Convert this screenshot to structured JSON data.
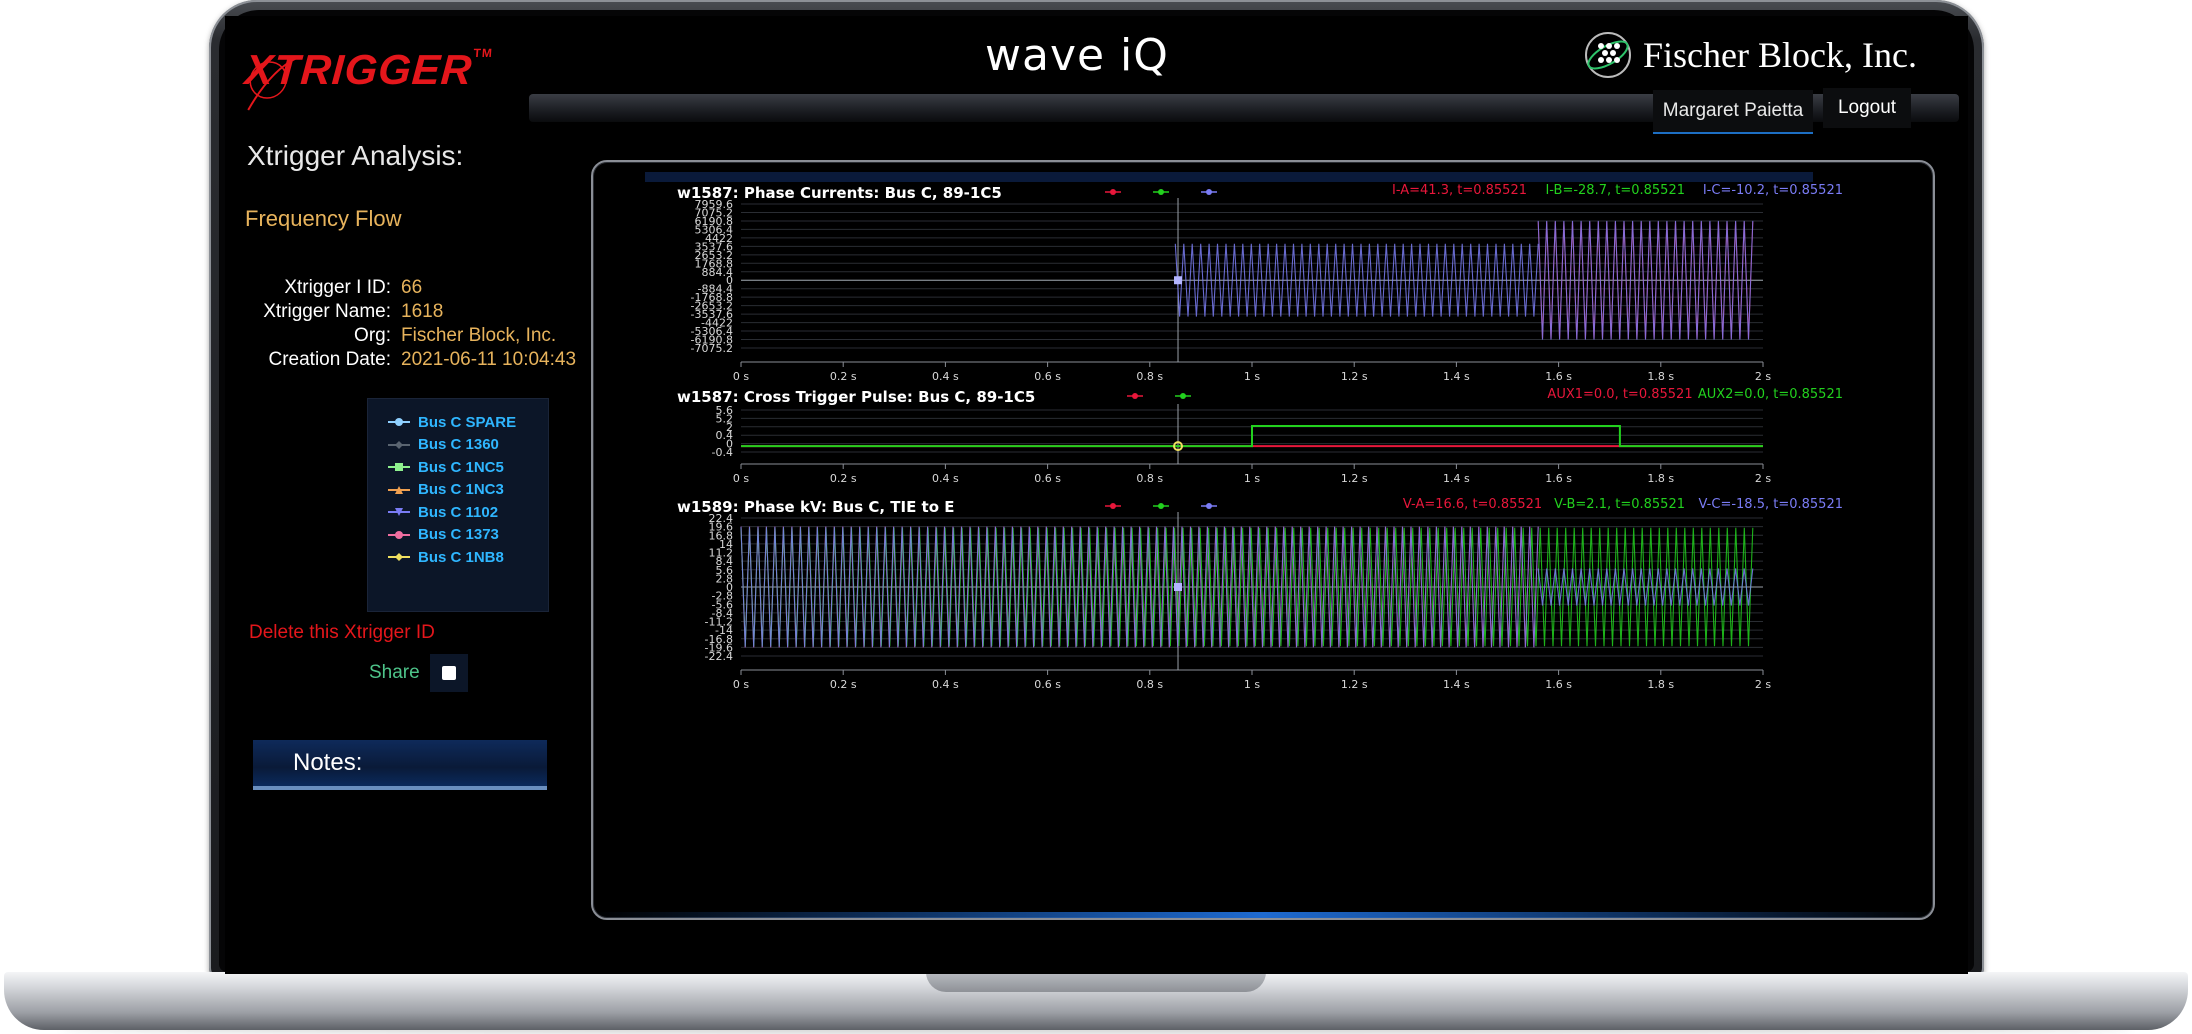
{
  "brand": {
    "app_logo_text": "XTRIGGER",
    "app_logo_tm": "TM",
    "product_logo": "wave iQ",
    "company_name": "Fischer Block, Inc."
  },
  "header": {
    "user_name": "Margaret Paietta",
    "logout_label": "Logout"
  },
  "sidebar": {
    "title": "Xtrigger Analysis:",
    "link_frequency_flow": "Frequency Flow",
    "info": [
      {
        "label": "Xtrigger I ID:",
        "value": "66"
      },
      {
        "label": "Xtrigger Name:",
        "value": "1618"
      },
      {
        "label": "Org:",
        "value": "Fischer Block, Inc."
      },
      {
        "label": "Creation Date:",
        "value": "2021-06-11 10:04:43"
      }
    ],
    "legend": [
      {
        "label": "Bus C SPARE",
        "color": "#8fd0ff",
        "marker": "circle"
      },
      {
        "label": "Bus C 1360",
        "color": "#5a6470",
        "marker": "diamond"
      },
      {
        "label": "Bus C 1NC5",
        "color": "#8ef08e",
        "marker": "square"
      },
      {
        "label": "Bus C 1NC3",
        "color": "#f0a050",
        "marker": "triangle-up"
      },
      {
        "label": "Bus C 1102",
        "color": "#7a7cf5",
        "marker": "triangle-down"
      },
      {
        "label": "Bus C 1373",
        "color": "#f06ea0",
        "marker": "circle"
      },
      {
        "label": "Bus C 1NB8",
        "color": "#f0e060",
        "marker": "diamond"
      }
    ],
    "delete_label": "Delete this Xtrigger  ID",
    "share_label": "Share",
    "notes_label": "Notes:"
  },
  "colors": {
    "phase_a": "#e8173b",
    "phase_b": "#22d11e",
    "phase_c": "#7a7cf5",
    "accent_gold": "#e7b35c",
    "accent_red": "#e4161b"
  },
  "chart_data": [
    {
      "type": "line",
      "title": "w1587: Phase Currents: Bus C, 89-1C5",
      "readouts": [
        {
          "text": "I-A=41.3, t=0.85521",
          "color": "#e8173b"
        },
        {
          "text": "I-B=-28.7, t=0.85521",
          "color": "#22d11e"
        },
        {
          "text": "I-C=-10.2, t=0.85521",
          "color": "#7a7cf5"
        }
      ],
      "y_ticks": [
        "7959.6",
        "7075.2",
        "6190.8",
        "5306.4",
        "4422",
        "3537.6",
        "2653.2",
        "1768.8",
        "884.4",
        "0",
        "-884.4",
        "-1768.8",
        "-2653.2",
        "-3537.6",
        "-4422",
        "-5306.4",
        "-6190.8",
        "-7075.2"
      ],
      "x_ticks": [
        "0 s",
        "0.2 s",
        "0.4 s",
        "0.6 s",
        "0.8 s",
        "1 s",
        "1.2 s",
        "1.4 s",
        "1.6 s",
        "1.8 s",
        "2 s"
      ],
      "xlim": [
        0,
        2
      ],
      "ylim": [
        -7075.2,
        7959.6
      ],
      "cursor_x": 0.85521,
      "series": [
        {
          "name": "I-A",
          "color": "#e8173b",
          "segments": [
            {
              "x0": 0.85,
              "x1": 1.56,
              "amp": 0
            },
            {
              "x0": 1.56,
              "x1": 1.98,
              "amp": 6100
            }
          ]
        },
        {
          "name": "I-B",
          "color": "#22d11e",
          "segments": []
        },
        {
          "name": "I-C",
          "color": "#7a7cf5",
          "segments": [
            {
              "x0": 0.85,
              "x1": 1.56,
              "amp": 3800
            },
            {
              "x0": 1.56,
              "x1": 1.98,
              "amp": 6200
            }
          ]
        }
      ]
    },
    {
      "type": "line",
      "title": "w1587: Cross Trigger Pulse: Bus C, 89-1C5",
      "readouts": [
        {
          "text": "AUX1=0.0, t=0.85521",
          "color": "#e8173b"
        },
        {
          "text": "AUX2=0.0, t=0.85521",
          "color": "#22d11e"
        }
      ],
      "y_ticks": [
        "5.6",
        "5.2",
        "2",
        "0.4",
        "0",
        "-0.4"
      ],
      "x_ticks": [
        "0 s",
        "0.2 s",
        "0.4 s",
        "0.6 s",
        "0.8 s",
        "1 s",
        "1.2 s",
        "1.4 s",
        "1.6 s",
        "1.8 s",
        "2 s"
      ],
      "xlim": [
        0,
        2
      ],
      "cursor_x": 0.85521,
      "series": [
        {
          "name": "AUX1",
          "color": "#e8173b",
          "points": [
            [
              0,
              0
            ],
            [
              2,
              0
            ]
          ]
        },
        {
          "name": "AUX2",
          "color": "#22d11e",
          "points": [
            [
              0,
              0
            ],
            [
              1.0,
              0
            ],
            [
              1.0,
              1
            ],
            [
              1.72,
              1
            ],
            [
              1.72,
              0
            ],
            [
              2,
              0
            ]
          ]
        }
      ]
    },
    {
      "type": "line",
      "title": "w1589: Phase kV: Bus C, TIE to E",
      "readouts": [
        {
          "text": "V-A=16.6, t=0.85521",
          "color": "#e8173b"
        },
        {
          "text": "V-B=2.1, t=0.85521",
          "color": "#22d11e"
        },
        {
          "text": "V-C=-18.5, t=0.85521",
          "color": "#7a7cf5"
        }
      ],
      "y_ticks": [
        "22.4",
        "19.6",
        "16.8",
        "14",
        "11.2",
        "8.4",
        "5.6",
        "2.8",
        "0",
        "-2.8",
        "-5.6",
        "-8.4",
        "-11.2",
        "-14",
        "-16.8",
        "-19.6",
        "-22.4"
      ],
      "x_ticks": [
        "0 s",
        "0.2 s",
        "0.4 s",
        "0.6 s",
        "0.8 s",
        "1 s",
        "1.2 s",
        "1.4 s",
        "1.6 s",
        "1.8 s",
        "2 s"
      ],
      "xlim": [
        0,
        2
      ],
      "ylim": [
        -22.4,
        22.4
      ],
      "cursor_x": 0.85521,
      "series": [
        {
          "name": "V-A",
          "color": "#e8173b",
          "segments": [
            {
              "x0": 0,
              "x1": 1.56,
              "amp": 19.6
            }
          ]
        },
        {
          "name": "V-B",
          "color": "#22d11e",
          "segments": [
            {
              "x0": 0,
              "x1": 1.98,
              "amp": 19.6
            }
          ]
        },
        {
          "name": "V-C",
          "color": "#7a7cf5",
          "segments": [
            {
              "x0": 0,
              "x1": 1.56,
              "amp": 19.6
            },
            {
              "x0": 1.56,
              "x1": 1.98,
              "amp": 6
            }
          ]
        }
      ]
    }
  ]
}
